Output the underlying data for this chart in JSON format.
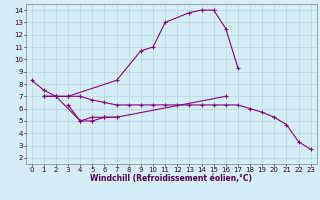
{
  "xlabel": "Windchill (Refroidissement éolien,°C)",
  "xlim": [
    -0.5,
    23.5
  ],
  "ylim": [
    1.5,
    14.5
  ],
  "xticks": [
    0,
    1,
    2,
    3,
    4,
    5,
    6,
    7,
    8,
    9,
    10,
    11,
    12,
    13,
    14,
    15,
    16,
    17,
    18,
    19,
    20,
    21,
    22,
    23
  ],
  "yticks": [
    2,
    3,
    4,
    5,
    6,
    7,
    8,
    9,
    10,
    11,
    12,
    13,
    14
  ],
  "bg_color": "#d5eef5",
  "line_color": "#880088",
  "grid_color": "#b0cfd8",
  "line1_x": [
    0,
    1,
    2,
    3,
    7,
    9,
    10,
    11,
    13,
    14,
    15,
    16,
    17
  ],
  "line1_y": [
    8.3,
    7.5,
    7.0,
    7.0,
    8.3,
    10.7,
    11.0,
    13.0,
    13.8,
    14.0,
    14.0,
    12.5,
    9.3
  ],
  "line2_x": [
    1,
    2,
    4,
    5,
    6,
    7,
    16
  ],
  "line2_y": [
    7.0,
    7.0,
    5.0,
    5.0,
    5.3,
    5.3,
    7.0
  ],
  "line3_x": [
    3,
    4,
    5,
    6,
    7
  ],
  "line3_y": [
    6.3,
    5.0,
    5.3,
    5.3,
    5.3
  ],
  "line4_x": [
    1,
    2,
    3,
    4,
    5,
    6,
    7,
    8,
    9,
    10,
    11,
    12,
    13,
    14,
    15,
    16,
    17,
    18,
    19,
    20,
    21,
    22,
    23
  ],
  "line4_y": [
    7.0,
    7.0,
    7.0,
    7.0,
    6.7,
    6.5,
    6.3,
    6.3,
    6.3,
    6.3,
    6.3,
    6.3,
    6.3,
    6.3,
    6.3,
    6.3,
    6.3,
    6.0,
    5.7,
    5.3,
    4.7,
    3.3,
    2.7
  ],
  "tick_fontsize": 5.0,
  "xlabel_fontsize": 5.5,
  "marker_size": 2.5,
  "line_width": 0.8
}
